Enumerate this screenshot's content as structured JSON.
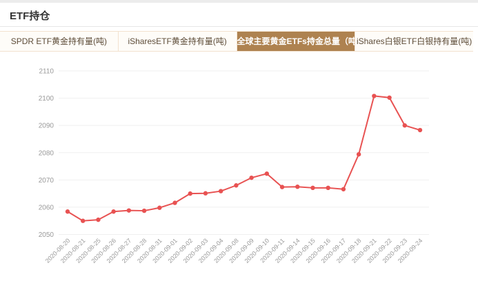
{
  "page": {
    "title": "ETF持仓"
  },
  "tabs": [
    {
      "id": "spdr-etf-gold",
      "label": "SPDR ETF黄金持有量(吨)",
      "active": false
    },
    {
      "id": "ishares-etf-gold",
      "label": "iSharesETF黄金持有量(吨)",
      "active": false
    },
    {
      "id": "global-gold-etfs",
      "label": "全球主要黄金ETFs持金总量（吨）",
      "active": true
    },
    {
      "id": "ishares-etf-silver",
      "label": "iShares白银ETF白银持有量(吨)",
      "active": false
    }
  ],
  "colors": {
    "accent": "#ae8250",
    "line": "#e85252",
    "point": "#e85252",
    "grid": "#efefef",
    "axis_text": "#999999",
    "tab_text": "#5d4c38",
    "tab_border": "#f3e2cf",
    "tab_bg": "#fefcf8"
  },
  "chart_data": {
    "type": "line",
    "title": "全球主要黄金ETFs持金总量（吨）",
    "xlabel": "",
    "ylabel": "",
    "x": [
      "2020-08-20",
      "2020-08-21",
      "2020-08-25",
      "2020-08-26",
      "2020-08-27",
      "2020-08-28",
      "2020-08-31",
      "2020-09-01",
      "2020-09-02",
      "2020-09-03",
      "2020-09-04",
      "2020-09-08",
      "2020-09-09",
      "2020-09-10",
      "2020-09-11",
      "2020-09-14",
      "2020-09-15",
      "2020-09-16",
      "2020-09-17",
      "2020-09-18",
      "2020-09-21",
      "2020-09-22",
      "2020-09-23",
      "2020-09-24"
    ],
    "series": [
      {
        "name": "全球主要黄金ETFs持金总量(吨)",
        "values": [
          2058.4,
          2055.0,
          2055.4,
          2058.4,
          2058.8,
          2058.7,
          2059.8,
          2061.6,
          2065.0,
          2065.1,
          2065.9,
          2068.0,
          2070.8,
          2072.3,
          2067.4,
          2067.5,
          2067.1,
          2067.1,
          2066.6,
          2079.4,
          2100.8,
          2100.2,
          2090.0,
          2088.3
        ]
      }
    ],
    "ylim": [
      2050,
      2110
    ],
    "yticks": [
      2050,
      2060,
      2070,
      2080,
      2090,
      2100,
      2110
    ],
    "grid": true,
    "legend": "none"
  }
}
